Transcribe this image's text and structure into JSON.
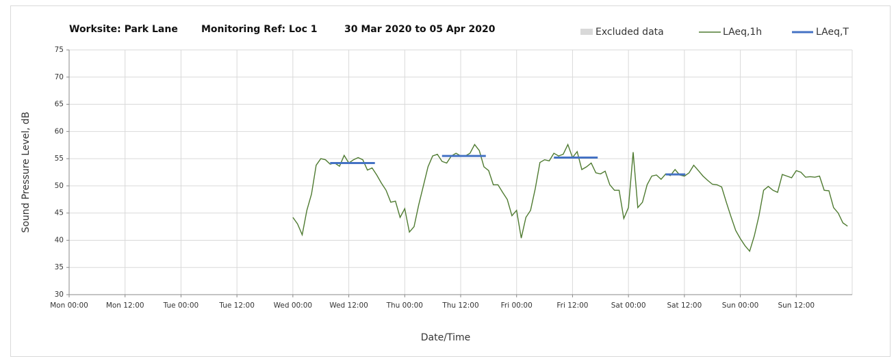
{
  "chart_data": {
    "type": "line",
    "title": [
      "Worksite: Park Lane",
      "Monitoring Ref: Loc 1",
      "30 Mar 2020 to 05 Apr 2020"
    ],
    "x_label": "Date/Time",
    "y_label": "Sound Pressure Level, dB",
    "xlim": [
      0,
      168
    ],
    "xticks": [
      {
        "value": 0,
        "label": "Mon 00:00"
      },
      {
        "value": 12,
        "label": "Mon 12:00"
      },
      {
        "value": 24,
        "label": "Tue 00:00"
      },
      {
        "value": 36,
        "label": "Tue 12:00"
      },
      {
        "value": 48,
        "label": "Wed 00:00"
      },
      {
        "value": 60,
        "label": "Wed 12:00"
      },
      {
        "value": 72,
        "label": "Thu 00:00"
      },
      {
        "value": 84,
        "label": "Thu 12:00"
      },
      {
        "value": 96,
        "label": "Fri 00:00"
      },
      {
        "value": 108,
        "label": "Fri 12:00"
      },
      {
        "value": 120,
        "label": "Sat 00:00"
      },
      {
        "value": 132,
        "label": "Sat 12:00"
      },
      {
        "value": 144,
        "label": "Sun 00:00"
      },
      {
        "value": 156,
        "label": "Sun 12:00"
      }
    ],
    "ylim": [
      30,
      75
    ],
    "yticks": [
      30,
      35,
      40,
      45,
      50,
      55,
      60,
      65,
      70,
      75
    ],
    "grid": true,
    "legend": "top-right",
    "series": [
      {
        "name": "Excluded data",
        "color": "#d9d9d9"
      },
      {
        "name": "LAeq,1h",
        "color": "#4e7a30",
        "x": [
          48,
          49,
          50,
          51,
          52,
          53,
          54,
          55,
          56,
          57,
          58,
          59,
          60,
          61,
          62,
          63,
          64,
          65,
          66,
          67,
          68,
          69,
          70,
          71,
          72,
          73,
          74,
          75,
          76,
          77,
          78,
          79,
          80,
          81,
          82,
          83,
          84,
          85,
          86,
          87,
          88,
          89,
          90,
          91,
          92,
          93,
          94,
          95,
          96,
          97,
          98,
          99,
          100,
          101,
          102,
          103,
          104,
          105,
          106,
          107,
          108,
          109,
          110,
          111,
          112,
          113,
          114,
          115,
          116,
          117,
          118,
          119,
          120,
          121,
          122,
          123,
          124,
          125,
          126,
          127,
          128,
          129,
          130,
          131,
          132,
          133,
          134,
          135,
          136,
          137,
          138,
          139,
          140,
          141,
          142,
          143,
          144,
          145,
          146,
          147,
          148,
          149,
          150,
          151,
          152,
          153,
          154,
          155,
          156,
          157,
          158,
          159,
          160,
          161,
          162,
          163,
          164,
          165,
          166,
          167
        ],
        "values": [
          44.2,
          43,
          41,
          45.5,
          48.5,
          53.8,
          55,
          54.8,
          54,
          54.2,
          53.6,
          55.6,
          54.2,
          54.8,
          55.2,
          54.8,
          52.9,
          53.3,
          52,
          50.5,
          49.2,
          47,
          47.2,
          44.2,
          45.8,
          41.5,
          42.5,
          46.5,
          50,
          53.5,
          55.5,
          55.8,
          54.5,
          54.2,
          55.5,
          56,
          55.5,
          55.5,
          56,
          57.6,
          56.5,
          53.5,
          52.8,
          50.2,
          50.2,
          48.8,
          47.5,
          44.5,
          45.5,
          40.4,
          44.2,
          45.5,
          49.5,
          54.3,
          54.8,
          54.6,
          56,
          55.5,
          55.8,
          57.6,
          55.2,
          56.3,
          53,
          53.5,
          54.2,
          52.4,
          52.2,
          52.7,
          50.2,
          49.2,
          49.2,
          44,
          46,
          56.2,
          46,
          47,
          50.2,
          51.8,
          52,
          51.2,
          52.2,
          51.9,
          53,
          52,
          51.8,
          52.4,
          53.8,
          52.8,
          51.8,
          51,
          50.3,
          50.2,
          49.8,
          47,
          44.3,
          41.8,
          40.3,
          39,
          38,
          40.8,
          44.5,
          49.2,
          49.9,
          49.2,
          48.8,
          52.1,
          51.8,
          51.5,
          52.8,
          52.5,
          51.6,
          51.7,
          51.6,
          51.8,
          49.2,
          49.1,
          46,
          45,
          43.2,
          42.6
        ]
      },
      {
        "name": "LAeq,T",
        "color": "#4472c4",
        "segments": [
          {
            "start": 56,
            "end": 65.6,
            "value": 54.2
          },
          {
            "start": 80,
            "end": 89.4,
            "value": 55.5
          },
          {
            "start": 104,
            "end": 113.4,
            "value": 55.2
          },
          {
            "start": 128,
            "end": 132.2,
            "value": 52.1
          }
        ]
      }
    ]
  }
}
